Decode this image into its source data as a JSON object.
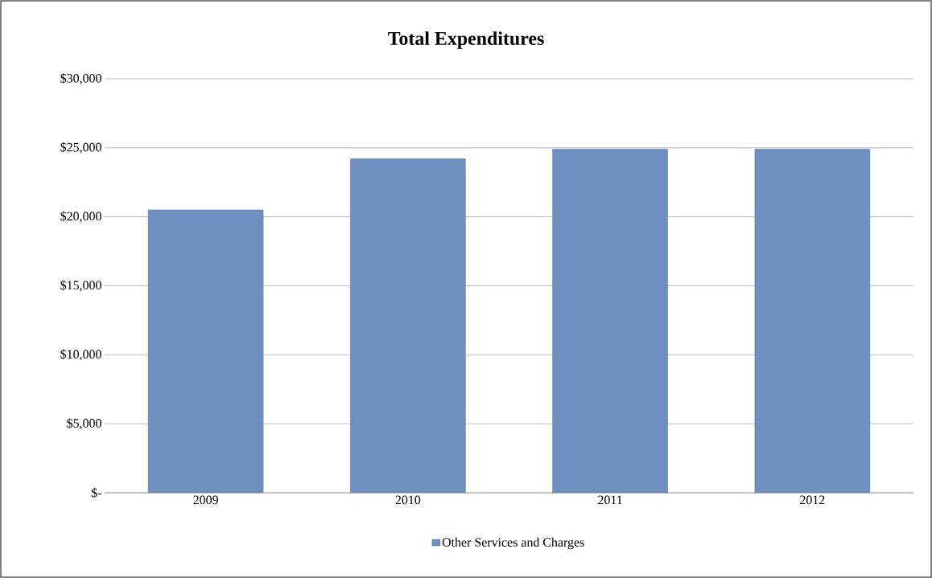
{
  "chart_data": {
    "type": "bar",
    "title": "Total Expenditures",
    "categories": [
      "2009",
      "2010",
      "2011",
      "2012"
    ],
    "series": [
      {
        "name": "Other Services and Charges",
        "color": "#6f8fc0",
        "values": [
          20500,
          24200,
          24900,
          24900
        ]
      }
    ],
    "ylim": [
      0,
      30000
    ],
    "yticks": [
      {
        "value": 0,
        "label": "$-"
      },
      {
        "value": 5000,
        "label": "$5,000"
      },
      {
        "value": 10000,
        "label": "$10,000"
      },
      {
        "value": 15000,
        "label": "$15,000"
      },
      {
        "value": 20000,
        "label": "$20,000"
      },
      {
        "value": 25000,
        "label": "$25,000"
      },
      {
        "value": 30000,
        "label": "$30,000"
      }
    ],
    "grid": "y",
    "legend": "bottom"
  }
}
